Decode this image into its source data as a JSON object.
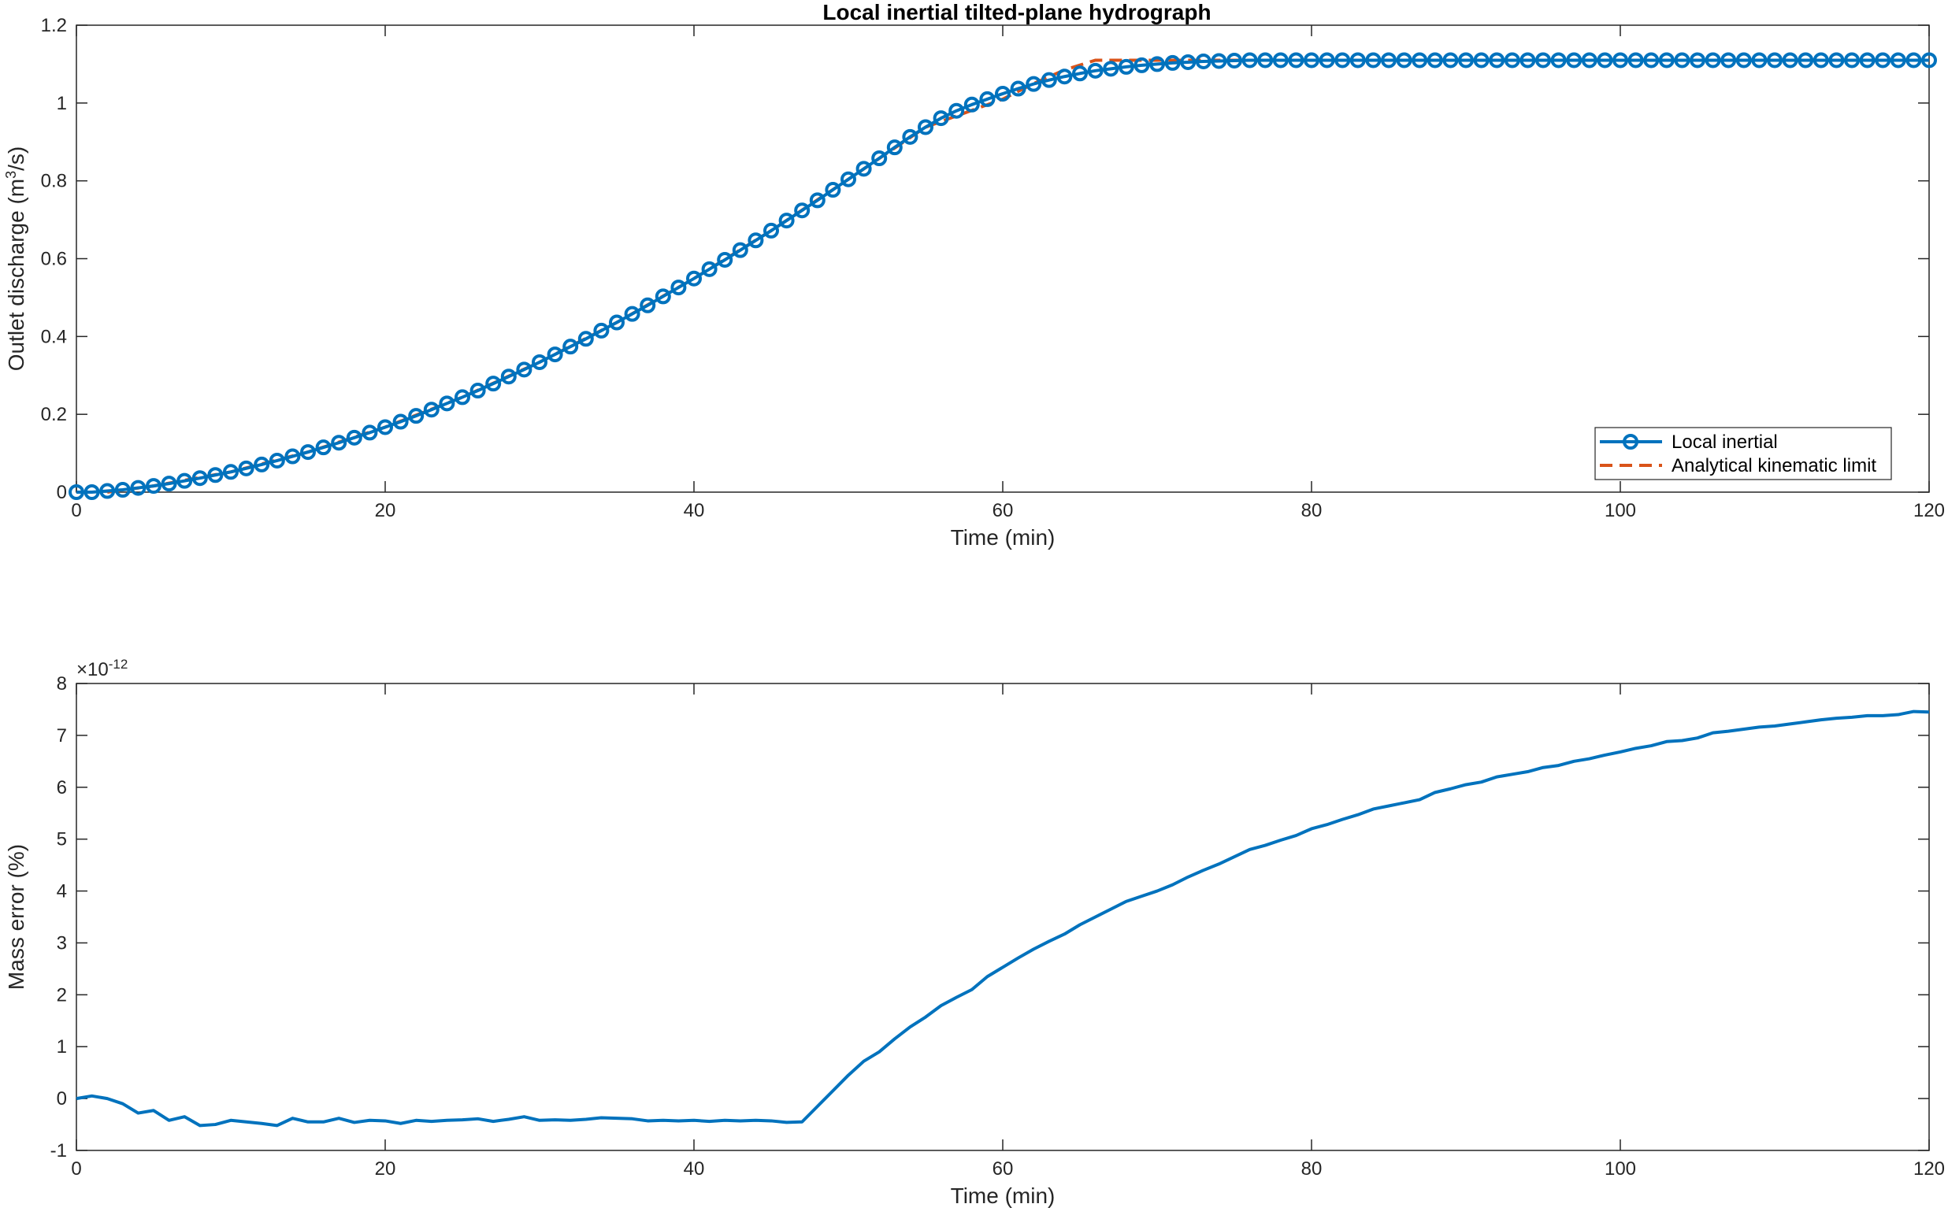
{
  "chart_data": [
    {
      "type": "line",
      "title": "Local inertial tilted-plane hydrograph",
      "xlabel": "Time (min)",
      "ylabel_prefix": "Outlet discharge (m",
      "ylabel_sup": "3",
      "ylabel_suffix": "/s)",
      "xlim": [
        0,
        120
      ],
      "ylim": [
        0,
        1.2
      ],
      "xticks": [
        0,
        20,
        40,
        60,
        80,
        100,
        120
      ],
      "xtick_labels": [
        "0",
        "20",
        "40",
        "60",
        "80",
        "100",
        "120"
      ],
      "yticks": [
        0,
        0.2,
        0.4,
        0.6,
        0.8,
        1.0,
        1.2
      ],
      "ytick_labels": [
        "0",
        "0.2",
        "0.4",
        "0.6",
        "0.8",
        "1",
        "1.2"
      ],
      "grid": false,
      "legend_position": "bottom-right",
      "colors": {
        "local": "#0072BD",
        "analytical": "#D95319"
      },
      "series": [
        {
          "name": "Local inertial",
          "style": "solid line with circle markers",
          "x": [
            0,
            1,
            2,
            3,
            4,
            5,
            6,
            7,
            8,
            9,
            10,
            11,
            12,
            13,
            14,
            15,
            16,
            17,
            18,
            19,
            20,
            21,
            22,
            23,
            24,
            25,
            26,
            27,
            28,
            29,
            30,
            31,
            32,
            33,
            34,
            35,
            36,
            37,
            38,
            39,
            40,
            41,
            42,
            43,
            44,
            45,
            46,
            47,
            48,
            49,
            50,
            51,
            52,
            53,
            54,
            55,
            56,
            57,
            58,
            59,
            60,
            61,
            62,
            63,
            64,
            65,
            66,
            67,
            68,
            69,
            70,
            71,
            72,
            73,
            74,
            75,
            76,
            77,
            78,
            79,
            80,
            81,
            82,
            83,
            84,
            85,
            86,
            87,
            88,
            89,
            90,
            91,
            92,
            93,
            94,
            95,
            96,
            97,
            98,
            99,
            100,
            101,
            102,
            103,
            104,
            105,
            106,
            107,
            108,
            109,
            110,
            111,
            112,
            113,
            114,
            115,
            116,
            117,
            118,
            119,
            120
          ],
          "y": [
            0.0,
            0.0,
            0.003,
            0.006,
            0.011,
            0.016,
            0.022,
            0.029,
            0.036,
            0.044,
            0.052,
            0.061,
            0.071,
            0.081,
            0.092,
            0.103,
            0.115,
            0.127,
            0.14,
            0.153,
            0.167,
            0.181,
            0.196,
            0.212,
            0.228,
            0.244,
            0.261,
            0.279,
            0.297,
            0.315,
            0.334,
            0.354,
            0.374,
            0.394,
            0.415,
            0.436,
            0.458,
            0.48,
            0.503,
            0.526,
            0.549,
            0.573,
            0.597,
            0.622,
            0.647,
            0.672,
            0.698,
            0.724,
            0.75,
            0.777,
            0.804,
            0.831,
            0.858,
            0.886,
            0.913,
            0.938,
            0.961,
            0.98,
            0.996,
            1.01,
            1.024,
            1.037,
            1.049,
            1.059,
            1.068,
            1.076,
            1.083,
            1.088,
            1.093,
            1.097,
            1.1,
            1.103,
            1.105,
            1.107,
            1.108,
            1.109,
            1.11,
            1.11,
            1.11,
            1.11,
            1.11,
            1.11,
            1.11,
            1.11,
            1.11,
            1.11,
            1.11,
            1.11,
            1.11,
            1.11,
            1.11,
            1.11,
            1.11,
            1.11,
            1.11,
            1.11,
            1.11,
            1.11,
            1.11,
            1.11,
            1.11,
            1.11,
            1.11,
            1.11,
            1.11,
            1.11,
            1.11,
            1.11,
            1.11,
            1.11,
            1.11,
            1.11,
            1.11,
            1.11,
            1.11,
            1.11,
            1.11,
            1.11,
            1.11,
            1.11,
            1.11
          ]
        },
        {
          "name": "Analytical kinematic limit",
          "style": "dashed line",
          "x": [
            2,
            5,
            10,
            15,
            20,
            25,
            30,
            35,
            40,
            45,
            50,
            55,
            60,
            62,
            64,
            66,
            70,
            75,
            80,
            90,
            100,
            110,
            120
          ],
          "y": [
            0.0,
            0.016,
            0.052,
            0.103,
            0.167,
            0.244,
            0.334,
            0.436,
            0.549,
            0.672,
            0.804,
            0.938,
            1.01,
            1.05,
            1.085,
            1.11,
            1.11,
            1.11,
            1.11,
            1.11,
            1.11,
            1.11,
            1.11
          ]
        }
      ]
    },
    {
      "type": "line",
      "title": "",
      "xlabel": "Time (min)",
      "ylabel": "Mass error (%)",
      "y_exponent_base": "×10",
      "y_exponent_power": "-12",
      "xlim": [
        0,
        120
      ],
      "ylim": [
        -1,
        8
      ],
      "xticks": [
        0,
        20,
        40,
        60,
        80,
        100,
        120
      ],
      "xtick_labels": [
        "0",
        "20",
        "40",
        "60",
        "80",
        "100",
        "120"
      ],
      "yticks": [
        -1,
        0,
        1,
        2,
        3,
        4,
        5,
        6,
        7,
        8
      ],
      "ytick_labels": [
        "-1",
        "0",
        "1",
        "2",
        "3",
        "4",
        "5",
        "6",
        "7",
        "8"
      ],
      "grid": false,
      "colors": {
        "line": "#0072BD"
      },
      "series": [
        {
          "x": [
            0,
            1,
            2,
            3,
            4,
            5,
            6,
            7,
            8,
            9,
            10,
            11,
            12,
            13,
            14,
            15,
            16,
            17,
            18,
            19,
            20,
            21,
            22,
            23,
            24,
            25,
            26,
            27,
            28,
            29,
            30,
            31,
            32,
            33,
            34,
            35,
            36,
            37,
            38,
            39,
            40,
            41,
            42,
            43,
            44,
            45,
            46,
            47,
            48,
            49,
            50,
            51,
            52,
            53,
            54,
            55,
            56,
            57,
            58,
            59,
            60,
            61,
            62,
            63,
            64,
            65,
            66,
            67,
            68,
            69,
            70,
            71,
            72,
            73,
            74,
            75,
            76,
            77,
            78,
            79,
            80,
            81,
            82,
            83,
            84,
            85,
            86,
            87,
            88,
            89,
            90,
            91,
            92,
            93,
            94,
            95,
            96,
            97,
            98,
            99,
            100,
            101,
            102,
            103,
            104,
            105,
            106,
            107,
            108,
            109,
            110,
            111,
            112,
            113,
            114,
            115,
            116,
            117,
            118,
            119,
            120
          ],
          "y": [
            0.0,
            0.05,
            0.0,
            -0.1,
            -0.28,
            -0.23,
            -0.42,
            -0.35,
            -0.52,
            -0.5,
            -0.42,
            -0.45,
            -0.48,
            -0.52,
            -0.38,
            -0.45,
            -0.45,
            -0.38,
            -0.46,
            -0.42,
            -0.43,
            -0.48,
            -0.42,
            -0.44,
            -0.42,
            -0.41,
            -0.39,
            -0.44,
            -0.4,
            -0.35,
            -0.42,
            -0.41,
            -0.42,
            -0.4,
            -0.37,
            -0.38,
            -0.39,
            -0.43,
            -0.42,
            -0.43,
            -0.42,
            -0.44,
            -0.42,
            -0.43,
            -0.42,
            -0.43,
            -0.46,
            -0.45,
            -0.15,
            0.15,
            0.45,
            0.72,
            0.9,
            1.15,
            1.38,
            1.57,
            1.79,
            1.95,
            2.1,
            2.35,
            2.53,
            2.71,
            2.88,
            3.03,
            3.17,
            3.35,
            3.5,
            3.65,
            3.8,
            3.9,
            4.0,
            4.12,
            4.27,
            4.4,
            4.52,
            4.66,
            4.8,
            4.88,
            4.98,
            5.07,
            5.2,
            5.28,
            5.38,
            5.47,
            5.58,
            5.64,
            5.7,
            5.76,
            5.9,
            5.97,
            6.05,
            6.1,
            6.2,
            6.25,
            6.3,
            6.38,
            6.42,
            6.5,
            6.55,
            6.62,
            6.68,
            6.75,
            6.8,
            6.88,
            6.9,
            6.95,
            7.05,
            7.08,
            7.12,
            7.16,
            7.18,
            7.22,
            7.26,
            7.3,
            7.33,
            7.35,
            7.38,
            7.38,
            7.4,
            7.46,
            7.45
          ]
        }
      ]
    }
  ]
}
